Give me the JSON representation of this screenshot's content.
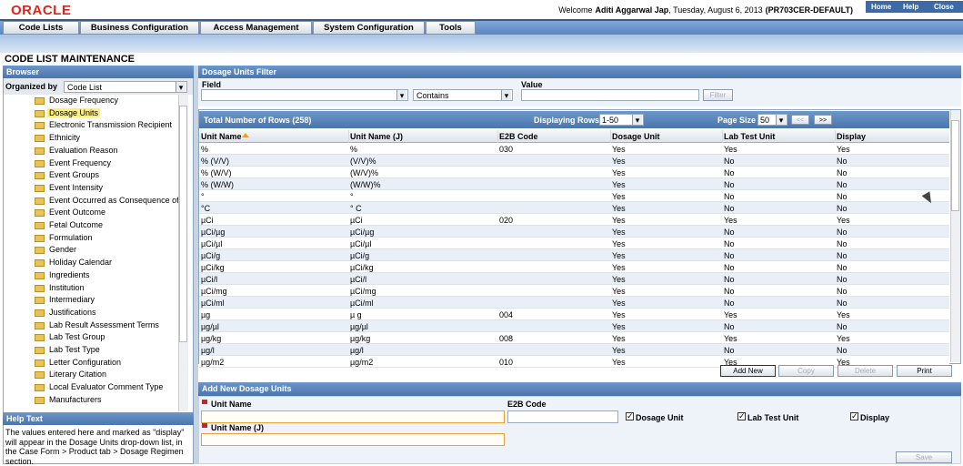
{
  "header": {
    "logo": "ORACLE",
    "welcome": "Welcome",
    "user": "Aditi Aggarwal Jap",
    "date": ", Tuesday, August 6, 2013",
    "profile": "(PR703CER-DEFAULT)",
    "links": [
      "Home",
      "Help",
      "Close"
    ]
  },
  "menu": [
    "Code Lists",
    "Business Configuration",
    "Access Management",
    "System Configuration",
    "Tools"
  ],
  "page_title": "CODE LIST MAINTENANCE",
  "browser": {
    "title": "Browser",
    "organized_by_label": "Organized by",
    "organized_by_value": "Code List",
    "items": [
      "Dosage Frequency",
      "Dosage Units",
      "Electronic Transmission Recipient",
      "Ethnicity",
      "Evaluation Reason",
      "Event Frequency",
      "Event Groups",
      "Event Intensity",
      "Event Occurred as Consequence of",
      "Event Outcome",
      "Fetal Outcome",
      "Formulation",
      "Gender",
      "Holiday Calendar",
      "Ingredients",
      "Institution",
      "Intermediary",
      "Justifications",
      "Lab Result Assessment Terms",
      "Lab Test Group",
      "Lab Test Type",
      "Letter Configuration",
      "Literary Citation",
      "Local Evaluator Comment Type",
      "Manufacturers"
    ]
  },
  "help": {
    "title": "Help Text",
    "text": "The values entered here and marked as \"display\" will appear in the Dosage Units drop-down list, in the Case Form > Product tab > Dosage Regimen section."
  },
  "filter": {
    "title": "Dosage Units Filter",
    "field_label": "Field",
    "operator": "Contains",
    "value_label": "Value",
    "button": "Filter"
  },
  "table": {
    "total": "Total Number of Rows (258)",
    "displaying_label": "Displaying Rows",
    "displaying_value": "1-50",
    "page_size_label": "Page Size",
    "page_size": "50",
    "prev": "<<",
    "next": ">>",
    "columns": [
      "Unit Name",
      "Unit Name (J)",
      "E2B Code",
      "Dosage Unit",
      "Lab Test Unit",
      "Display"
    ],
    "rows": [
      [
        "%",
        "%",
        "030",
        "Yes",
        "Yes",
        "Yes"
      ],
      [
        "% (V/V)",
        "(V/V)%",
        null,
        "Yes",
        "No",
        "No"
      ],
      [
        "% (W/V)",
        "(W/V)%",
        null,
        "Yes",
        "No",
        "No"
      ],
      [
        "% (W/W)",
        "(W/W)%",
        null,
        "Yes",
        "No",
        "No"
      ],
      [
        "°",
        "°",
        null,
        "Yes",
        "No",
        "No"
      ],
      [
        "°C",
        "° C",
        null,
        "Yes",
        "No",
        "No"
      ],
      [
        "µCi",
        "µCi",
        "020",
        "Yes",
        "Yes",
        "Yes"
      ],
      [
        "µCi/µg",
        "µCi/µg",
        null,
        "Yes",
        "No",
        "No"
      ],
      [
        "µCi/µl",
        "µCi/µl",
        null,
        "Yes",
        "No",
        "No"
      ],
      [
        "µCi/g",
        "µCi/g",
        null,
        "Yes",
        "No",
        "No"
      ],
      [
        "µCi/kg",
        "µCi/kg",
        null,
        "Yes",
        "No",
        "No"
      ],
      [
        "µCi/l",
        "µCi/l",
        null,
        "Yes",
        "No",
        "No"
      ],
      [
        "µCi/mg",
        "µCi/mg",
        null,
        "Yes",
        "No",
        "No"
      ],
      [
        "µCi/ml",
        "µCi/ml",
        null,
        "Yes",
        "No",
        "No"
      ],
      [
        "µg",
        "µ g",
        "004",
        "Yes",
        "Yes",
        "Yes"
      ],
      [
        "µg/µl",
        "µg/µl",
        null,
        "Yes",
        "No",
        "No"
      ],
      [
        "µg/kg",
        "µg/kg",
        "008",
        "Yes",
        "Yes",
        "Yes"
      ],
      [
        "µg/l",
        "µg/l",
        null,
        "Yes",
        "No",
        "No"
      ],
      [
        "µg/m2",
        "µg/m2",
        "010",
        "Yes",
        "Yes",
        "Yes"
      ]
    ]
  },
  "actions": [
    "Add New",
    "Copy",
    "Delete",
    "Print"
  ],
  "add_form": {
    "title": "Add New Dosage Units",
    "unit_name": "Unit Name",
    "e2b_code": "E2B Code",
    "dosage_unit": "Dosage Unit",
    "lab_test_unit": "Lab Test Unit",
    "display": "Display",
    "unit_name_j": "Unit Name (J)",
    "save": "Save"
  }
}
